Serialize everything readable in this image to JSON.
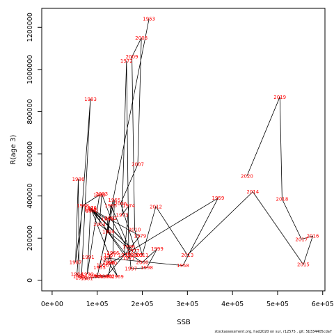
{
  "chart_data": {
    "type": "scatter",
    "connected": true,
    "xlabel": "SSB",
    "ylabel": "R(age 3)",
    "xlim": [
      -23000,
      605000
    ],
    "ylim": [
      -50000,
      1290000
    ],
    "xticks": [
      {
        "value": 0,
        "label": "0e+00"
      },
      {
        "value": 100000,
        "label": "1e+05"
      },
      {
        "value": 200000,
        "label": "2e+05"
      },
      {
        "value": 300000,
        "label": "3e+05"
      },
      {
        "value": 400000,
        "label": "4e+05"
      },
      {
        "value": 500000,
        "label": "5e+05"
      },
      {
        "value": 600000,
        "label": "6e+05"
      }
    ],
    "yticks": [
      {
        "value": 0,
        "label": "0"
      },
      {
        "value": 200000,
        "label": "200000"
      },
      {
        "value": 400000,
        "label": "400000"
      },
      {
        "value": 600000,
        "label": "600000"
      },
      {
        "value": 800000,
        "label": "800000"
      },
      {
        "value": 1000000,
        "label": "1000000"
      },
      {
        "value": 1200000,
        "label": "1200000"
      }
    ],
    "grid": false,
    "line_color": "#000000",
    "label_color": "#ff0000",
    "points": [
      {
        "label": "1953",
        "x": 215000,
        "y": 1240000
      },
      {
        "label": "1955",
        "x": 105000,
        "y": 60000
      },
      {
        "label": "1956",
        "x": 112000,
        "y": 72000
      },
      {
        "label": "1957",
        "x": 120000,
        "y": 105000
      },
      {
        "label": "1958",
        "x": 290000,
        "y": 70000
      },
      {
        "label": "1959",
        "x": 368000,
        "y": 390000
      },
      {
        "label": "1960",
        "x": 130000,
        "y": 82000
      },
      {
        "label": "1962",
        "x": 125000,
        "y": 20000
      },
      {
        "label": "1963",
        "x": 95000,
        "y": 22000
      },
      {
        "label": "1964",
        "x": 100000,
        "y": 18000
      },
      {
        "label": "1965",
        "x": 138000,
        "y": 380000
      },
      {
        "label": "1966",
        "x": 135000,
        "y": 130000
      },
      {
        "label": "1967",
        "x": 128000,
        "y": 120000
      },
      {
        "label": "1968",
        "x": 125000,
        "y": 85000
      },
      {
        "label": "1969",
        "x": 145000,
        "y": 18000
      },
      {
        "label": "1970",
        "x": 88000,
        "y": 330000
      },
      {
        "label": "1971",
        "x": 170000,
        "y": 105000
      },
      {
        "label": "1972",
        "x": 165000,
        "y": 1040000
      },
      {
        "label": "1973",
        "x": 155000,
        "y": 310000
      },
      {
        "label": "1974",
        "x": 170000,
        "y": 355000
      },
      {
        "label": "1975",
        "x": 160000,
        "y": 120000
      },
      {
        "label": "1976",
        "x": 85000,
        "y": 345000
      },
      {
        "label": "1977",
        "x": 180000,
        "y": 140000
      },
      {
        "label": "1978",
        "x": 85000,
        "y": 340000
      },
      {
        "label": "1979",
        "x": 195000,
        "y": 210000
      },
      {
        "label": "1980",
        "x": 120000,
        "y": 18000
      },
      {
        "label": "1981",
        "x": 77000,
        "y": 10000
      },
      {
        "label": "1982",
        "x": 65000,
        "y": 12000
      },
      {
        "label": "1983",
        "x": 85000,
        "y": 860000
      },
      {
        "label": "1984",
        "x": 55000,
        "y": 30000
      },
      {
        "label": "1985",
        "x": 60000,
        "y": 18000
      },
      {
        "label": "1986",
        "x": 58000,
        "y": 480000
      },
      {
        "label": "1987",
        "x": 52000,
        "y": 85000
      },
      {
        "label": "1988",
        "x": 68000,
        "y": 355000
      },
      {
        "label": "1989",
        "x": 105000,
        "y": 405000
      },
      {
        "label": "1990",
        "x": 78000,
        "y": 30000
      },
      {
        "label": "1991",
        "x": 80000,
        "y": 110000
      },
      {
        "label": "1992",
        "x": 85000,
        "y": 335000
      },
      {
        "label": "1993",
        "x": 122000,
        "y": 290000
      },
      {
        "label": "1994",
        "x": 125000,
        "y": 230000
      },
      {
        "label": "1995",
        "x": 130000,
        "y": 355000
      },
      {
        "label": "1996",
        "x": 170000,
        "y": 160000
      },
      {
        "label": "1997",
        "x": 175000,
        "y": 55000
      },
      {
        "label": "1998",
        "x": 210000,
        "y": 60000
      },
      {
        "label": "1999",
        "x": 233000,
        "y": 150000
      },
      {
        "label": "2000",
        "x": 200000,
        "y": 85000
      },
      {
        "label": "2001",
        "x": 175000,
        "y": 120000
      },
      {
        "label": "2002",
        "x": 130000,
        "y": 295000
      },
      {
        "label": "2003",
        "x": 110000,
        "y": 410000
      },
      {
        "label": "2004",
        "x": 105000,
        "y": 265000
      },
      {
        "label": "2005",
        "x": 188000,
        "y": 120000
      },
      {
        "label": "2006",
        "x": 152000,
        "y": 365000
      },
      {
        "label": "2007",
        "x": 190000,
        "y": 550000
      },
      {
        "label": "2008",
        "x": 198000,
        "y": 1150000
      },
      {
        "label": "2009",
        "x": 177000,
        "y": 1060000
      },
      {
        "label": "2010",
        "x": 183000,
        "y": 240000
      },
      {
        "label": "2011",
        "x": 200000,
        "y": 120000
      },
      {
        "label": "2012",
        "x": 230000,
        "y": 350000
      },
      {
        "label": "2013",
        "x": 300000,
        "y": 120000
      },
      {
        "label": "2014",
        "x": 445000,
        "y": 420000
      },
      {
        "label": "2015",
        "x": 557000,
        "y": 75000
      },
      {
        "label": "2016",
        "x": 578000,
        "y": 210000
      },
      {
        "label": "2017",
        "x": 553000,
        "y": 195000
      },
      {
        "label": "2018",
        "x": 510000,
        "y": 385000
      },
      {
        "label": "2019",
        "x": 505000,
        "y": 870000
      },
      {
        "label": "2020",
        "x": 432000,
        "y": 495000
      }
    ]
  },
  "footer": "stockassessment.org, had2020 on sur, r12575 , git: 5b334405cda7"
}
